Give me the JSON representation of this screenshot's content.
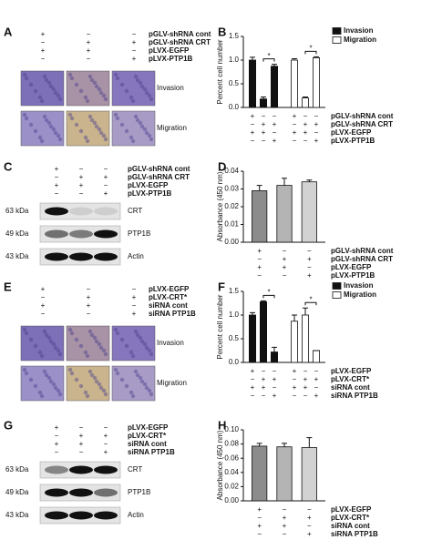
{
  "chart_data": [
    {
      "panel": "B",
      "type": "bar",
      "ylabel": "Percent cell number",
      "ylim": [
        0,
        1.5
      ],
      "yticks": [
        {
          "value": 0,
          "label": "0.0"
        },
        {
          "value": 0.5,
          "label": "0.5"
        },
        {
          "value": 1,
          "label": "1.0"
        },
        {
          "value": 1.5,
          "label": "1.5"
        }
      ],
      "series": [
        {
          "name": "Invasion",
          "color": "#111111",
          "values": [
            1.0,
            0.18,
            0.87
          ],
          "errors": [
            0.06,
            0.04,
            0.04
          ]
        },
        {
          "name": "Migration",
          "color": "#ffffff",
          "values": [
            1.0,
            0.2,
            1.05
          ],
          "errors": [
            0.03,
            0.02,
            0.02
          ]
        }
      ],
      "annotations": [
        "*",
        "*"
      ],
      "conditions": [
        {
          "name": "pGLV-shRNA cont",
          "signs": [
            "+",
            "−",
            "−",
            "+",
            "−",
            "−"
          ]
        },
        {
          "name": "pGLV-shRNA CRT",
          "signs": [
            "−",
            "+",
            "+",
            "−",
            "+",
            "+"
          ]
        },
        {
          "name": "pLVX-EGFP",
          "signs": [
            "+",
            "+",
            "−",
            "+",
            "+",
            "−"
          ]
        },
        {
          "name": "pLVX-PTP1B",
          "signs": [
            "−",
            "−",
            "+",
            "−",
            "−",
            "+"
          ]
        }
      ]
    },
    {
      "panel": "D",
      "type": "bar",
      "ylabel": "Absorbance (450 nm)",
      "ylim": [
        0,
        0.04
      ],
      "yticks": [
        {
          "value": 0,
          "label": "0.00"
        },
        {
          "value": 0.01,
          "label": "0.01"
        },
        {
          "value": 0.02,
          "label": "0.02"
        },
        {
          "value": 0.03,
          "label": "0.03"
        },
        {
          "value": 0.04,
          "label": "0.04"
        }
      ],
      "series": [
        {
          "colors": [
            "#8c8c8c",
            "#b4b4b4",
            "#d2d2d2"
          ],
          "values": [
            0.029,
            0.032,
            0.034
          ],
          "errors": [
            0.003,
            0.004,
            0.001
          ]
        }
      ],
      "conditions": [
        {
          "name": "pGLV-shRNA cont",
          "signs": [
            "+",
            "−",
            "−"
          ]
        },
        {
          "name": "pGLV-shRNA CRT",
          "signs": [
            "−",
            "+",
            "+"
          ]
        },
        {
          "name": "pLVX-EGFP",
          "signs": [
            "+",
            "+",
            "−"
          ]
        },
        {
          "name": "pLVX-PTP1B",
          "signs": [
            "−",
            "−",
            "+"
          ]
        }
      ]
    },
    {
      "panel": "F",
      "type": "bar",
      "ylabel": "Percent cell number",
      "ylim": [
        0,
        1.5
      ],
      "yticks": [
        {
          "value": 0,
          "label": "0.0"
        },
        {
          "value": 0.5,
          "label": "0.5"
        },
        {
          "value": 1,
          "label": "1.0"
        },
        {
          "value": 1.5,
          "label": "1.5"
        }
      ],
      "series": [
        {
          "name": "Invasion",
          "color": "#111111",
          "values": [
            1.0,
            1.28,
            0.22
          ],
          "errors": [
            0.05,
            0.02,
            0.1
          ]
        },
        {
          "name": "Migration",
          "color": "#ffffff",
          "values": [
            0.87,
            1.0,
            0.25
          ],
          "errors": [
            0.13,
            0.15,
            0.0
          ]
        }
      ],
      "annotations": [
        "*",
        "*"
      ],
      "conditions": [
        {
          "name": "pLVX-EGFP",
          "signs": [
            "+",
            "−",
            "−",
            "+",
            "−",
            "−"
          ]
        },
        {
          "name": "pLVX-CRT*",
          "signs": [
            "−",
            "+",
            "+",
            "−",
            "+",
            "+"
          ]
        },
        {
          "name": "siRNA cont",
          "signs": [
            "+",
            "+",
            "−",
            "+",
            "+",
            "−"
          ]
        },
        {
          "name": "siRNA PTP1B",
          "signs": [
            "−",
            "−",
            "+",
            "−",
            "−",
            "+"
          ]
        }
      ]
    },
    {
      "panel": "H",
      "type": "bar",
      "ylabel": "Absorbance (450 nm)",
      "ylim": [
        0,
        0.1
      ],
      "yticks": [
        {
          "value": 0,
          "label": "0.00"
        },
        {
          "value": 0.02,
          "label": "0.02"
        },
        {
          "value": 0.04,
          "label": "0.04"
        },
        {
          "value": 0.06,
          "label": "0.06"
        },
        {
          "value": 0.08,
          "label": "0.08"
        },
        {
          "value": 0.1,
          "label": "0.10"
        }
      ],
      "series": [
        {
          "colors": [
            "#8c8c8c",
            "#b4b4b4",
            "#d2d2d2"
          ],
          "values": [
            0.077,
            0.076,
            0.075
          ],
          "errors": [
            0.004,
            0.005,
            0.014
          ]
        }
      ],
      "conditions": [
        {
          "name": "pLVX-EGFP",
          "signs": [
            "+",
            "−",
            "−"
          ]
        },
        {
          "name": "pLVX-CRT*",
          "signs": [
            "−",
            "+",
            "+"
          ]
        },
        {
          "name": "siRNA cont",
          "signs": [
            "+",
            "+",
            "−"
          ]
        },
        {
          "name": "siRNA PTP1B",
          "signs": [
            "−",
            "−",
            "+"
          ]
        }
      ]
    }
  ],
  "micrographs": [
    {
      "panel": "A",
      "rows": [
        "Invasion",
        "Migration"
      ],
      "conditions": [
        {
          "name": "pGLV-shRNA cont",
          "signs": [
            "+",
            "−",
            "−"
          ]
        },
        {
          "name": "pGLV-shRNA CRT",
          "signs": [
            "−",
            "+",
            "+"
          ]
        },
        {
          "name": "pLVX-EGFP",
          "signs": [
            "+",
            "+",
            "−"
          ]
        },
        {
          "name": "pLVX-PTP1B",
          "signs": [
            "−",
            "−",
            "+"
          ]
        }
      ]
    },
    {
      "panel": "E",
      "rows": [
        "Invasion",
        "Migration"
      ],
      "conditions": [
        {
          "name": "pLVX-EGFP",
          "signs": [
            "+",
            "−",
            "−"
          ]
        },
        {
          "name": "pLVX-CRT*",
          "signs": [
            "−",
            "+",
            "+"
          ]
        },
        {
          "name": "siRNA cont",
          "signs": [
            "+",
            "+",
            "−"
          ]
        },
        {
          "name": "siRNA PTP1B",
          "signs": [
            "−",
            "−",
            "+"
          ]
        }
      ]
    }
  ],
  "blots": [
    {
      "panel": "C",
      "conditions": [
        {
          "name": "pGLV-shRNA cont",
          "signs": [
            "+",
            "−",
            "−"
          ]
        },
        {
          "name": "pGLV-shRNA CRT",
          "signs": [
            "−",
            "+",
            "+"
          ]
        },
        {
          "name": "pLVX-EGFP",
          "signs": [
            "+",
            "+",
            "−"
          ]
        },
        {
          "name": "pLVX-PTP1B",
          "signs": [
            "−",
            "−",
            "+"
          ]
        }
      ],
      "bands": [
        {
          "size": "63 kDa",
          "name": "CRT"
        },
        {
          "size": "49 kDa",
          "name": "PTP1B"
        },
        {
          "size": "43 kDa",
          "name": "Actin"
        }
      ]
    },
    {
      "panel": "G",
      "conditions": [
        {
          "name": "pLVX-EGFP",
          "signs": [
            "+",
            "−",
            "−"
          ]
        },
        {
          "name": "pLVX-CRT*",
          "signs": [
            "−",
            "+",
            "+"
          ]
        },
        {
          "name": "siRNA cont",
          "signs": [
            "+",
            "+",
            "−"
          ]
        },
        {
          "name": "siRNA PTP1B",
          "signs": [
            "−",
            "−",
            "+"
          ]
        }
      ],
      "bands": [
        {
          "size": "63 kDa",
          "name": "CRT"
        },
        {
          "size": "49 kDa",
          "name": "PTP1B"
        },
        {
          "size": "43 kDa",
          "name": "Actin"
        }
      ]
    }
  ]
}
